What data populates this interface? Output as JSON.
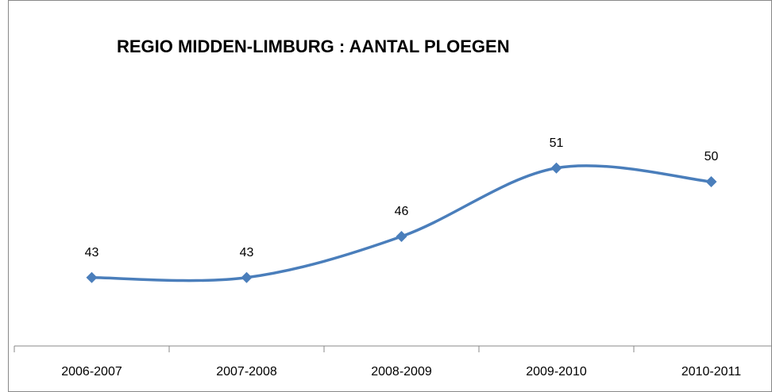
{
  "chart_data": {
    "type": "line",
    "title": "REGIO MIDDEN-LIMBURG : AANTAL PLOEGEN",
    "categories": [
      "2006-2007",
      "2007-2008",
      "2008-2009",
      "2009-2010",
      "2010-2011"
    ],
    "series": [
      {
        "name": "Aantal ploegen",
        "color": "#4a7ebb",
        "values": [
          43,
          43,
          46,
          51,
          50
        ]
      }
    ],
    "ylim": [
      38,
      62
    ],
    "smooth": true
  }
}
